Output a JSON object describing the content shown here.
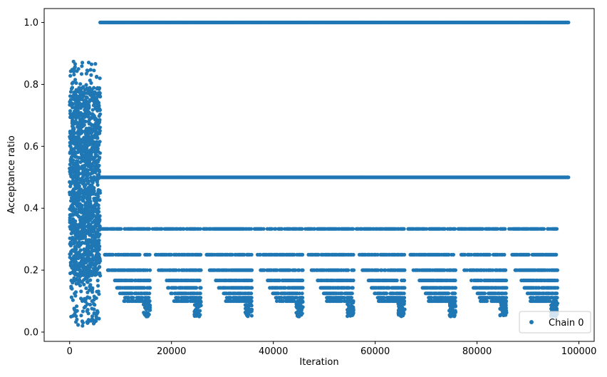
{
  "chart_data": {
    "type": "scatter",
    "title": "",
    "xlabel": "Iteration",
    "ylabel": "Acceptance ratio",
    "xlim": [
      -5000,
      103000
    ],
    "ylim": [
      -0.03,
      1.045
    ],
    "xticks": [
      0,
      20000,
      40000,
      60000,
      80000,
      100000
    ],
    "xtick_labels": [
      "0",
      "20000",
      "40000",
      "60000",
      "80000",
      "100000"
    ],
    "yticks": [
      0.0,
      0.2,
      0.4,
      0.6,
      0.8,
      1.0
    ],
    "ytick_labels": [
      "0.0",
      "0.2",
      "0.4",
      "0.6",
      "0.8",
      "1.0"
    ],
    "grid": false,
    "legend_position": "lower right",
    "series": [
      {
        "name": "Chain 0",
        "color": "#1f77b4",
        "marker": "circle",
        "burn_in": {
          "iterations": [
            0,
            6000
          ],
          "value_range": [
            0.02,
            0.88
          ],
          "dense_range": [
            0.18,
            0.78
          ]
        },
        "levels": [
          {
            "value": 1.0,
            "iterations": [
              6000,
              98000
            ],
            "continuous": true
          },
          {
            "value": 0.5,
            "iterations": [
              6000,
              98000
            ],
            "continuous": true
          },
          {
            "value": 0.3333,
            "iterations": [
              6000,
              98000
            ],
            "continuous": false
          },
          {
            "value": 0.25,
            "iterations": [
              6000,
              98000
            ],
            "continuous": false
          },
          {
            "value": 0.2,
            "iterations": [
              6000,
              98000
            ],
            "continuous": false
          },
          {
            "value": 0.1667,
            "iterations": [
              6000,
              98000
            ],
            "continuous": false
          },
          {
            "value": 0.1429,
            "iterations": [
              6000,
              98000
            ],
            "continuous": false
          },
          {
            "value": 0.125,
            "iterations": [
              6000,
              98000
            ],
            "continuous": false
          },
          {
            "value": 0.1111,
            "iterations": [
              6000,
              98000
            ],
            "continuous": false
          },
          {
            "value": 0.1,
            "iterations": [
              6000,
              98000
            ],
            "continuous": false
          }
        ],
        "decay_cycles_start_iterations": [
          6000,
          16000,
          26000,
          36000,
          46000,
          56000,
          66000,
          76000,
          86000
        ],
        "decay_cycle_length": 10000
      }
    ]
  }
}
